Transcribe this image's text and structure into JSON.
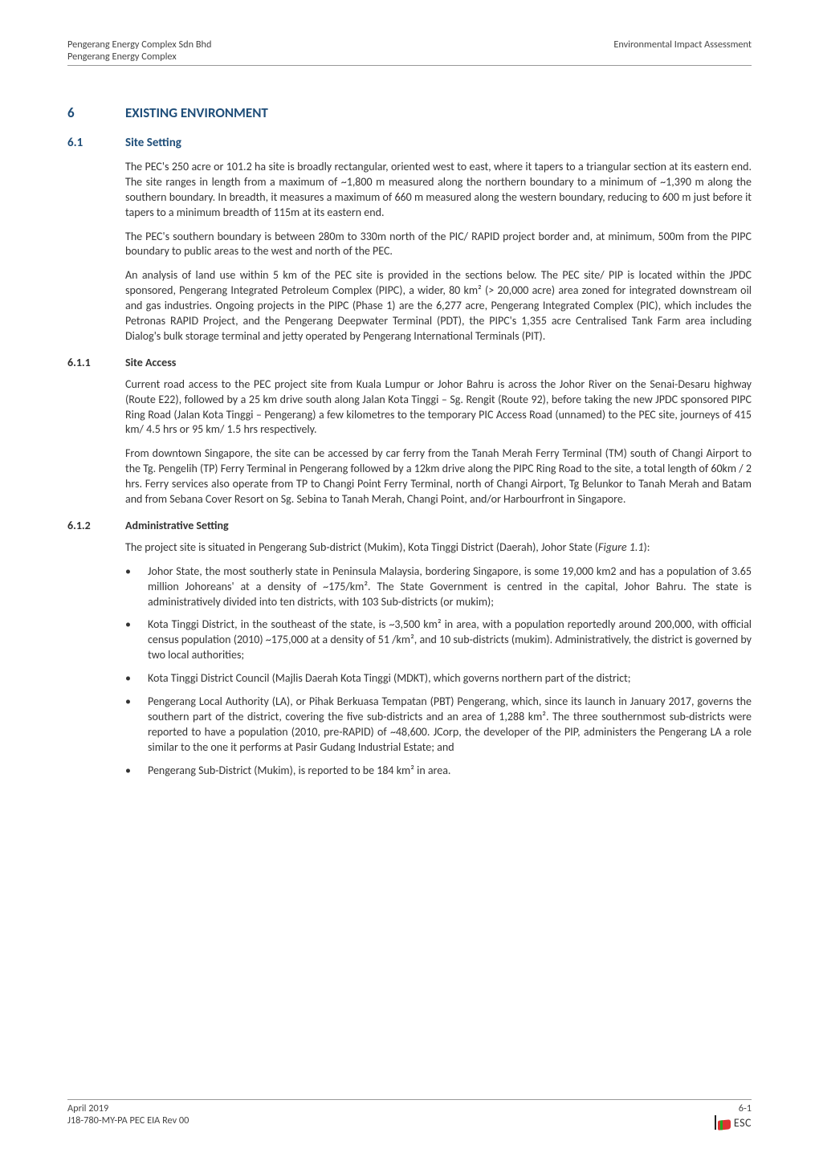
{
  "header": {
    "left_line1": "Pengerang Energy Complex Sdn Bhd",
    "left_line2": "Pengerang Energy Complex",
    "right_line1": "Environmental Impact Assessment"
  },
  "footer": {
    "left_line1": "April 2019",
    "left_line2": "J18-780-MY-PA PEC EIA Rev 00",
    "right_line1": "6-1",
    "logo_text": "ESC"
  },
  "sections": {
    "s6": {
      "num": "6",
      "title": "EXISTING ENVIRONMENT"
    },
    "s6_1": {
      "num": "6.1",
      "title": "Site Setting"
    },
    "s6_1_p1": "The PEC's 250 acre or 101.2 ha site is broadly rectangular, oriented west to east, where it tapers to a triangular section at its eastern end. The site ranges in length from a maximum of ~1,800 m measured along the northern boundary to a minimum of ~1,390 m along the southern boundary. In breadth, it measures a maximum of 660 m measured along the western boundary, reducing to 600 m just before it tapers to a minimum breadth of 115m at its eastern end.",
    "s6_1_p2": "The PEC's southern boundary is between 280m to 330m north of the PIC/ RAPID project border and, at minimum, 500m from the PIPC boundary to public areas to the west and north of the PEC.",
    "s6_1_p3": "An analysis of land use within 5 km of the PEC site is provided in the sections below.  The PEC site/ PIP is located within the JPDC sponsored, Pengerang Integrated Petroleum Complex (PIPC), a wider, 80 km² (> 20,000 acre) area zoned for integrated downstream oil and gas industries. Ongoing projects in the PIPC (Phase 1) are the 6,277 acre, Pengerang Integrated Complex (PIC), which includes the Petronas RAPID Project, and the Pengerang Deepwater Terminal (PDT), the PIPC's 1,355 acre Centralised Tank Farm area including Dialog's bulk storage terminal and jetty operated by Pengerang International Terminals (PIT).",
    "s6_1_1": {
      "num": "6.1.1",
      "title": "Site Access"
    },
    "s6_1_1_p1": "Current road access to the PEC project site from Kuala Lumpur or Johor Bahru is across the Johor River on the Senai-Desaru highway (Route E22), followed by a 25 km drive south along Jalan Kota Tinggi – Sg. Rengit (Route 92), before taking the new JPDC sponsored PIPC Ring Road (Jalan Kota Tinggi – Pengerang) a few kilometres to the temporary PIC Access Road (unnamed) to the PEC site, journeys of 415 km/ 4.5 hrs or 95 km/ 1.5 hrs respectively.",
    "s6_1_1_p2": "From downtown Singapore, the site can be accessed by car ferry from the Tanah Merah Ferry Terminal (TM) south of Changi Airport to the Tg. Pengelih (TP) Ferry Terminal in Pengerang followed by a 12km drive along the PIPC Ring Road to the site, a total length of 60km / 2 hrs.  Ferry services also operate from TP to Changi Point Ferry Terminal, north of Changi Airport, Tg Belunkor to Tanah Merah and Batam and from Sebana Cover Resort on Sg. Sebina to Tanah Merah, Changi Point, and/or Harbourfront in Singapore.",
    "s6_1_2": {
      "num": "6.1.2",
      "title": "Administrative Setting"
    },
    "s6_1_2_p1_a": "The project site is situated in Pengerang Sub-district (Mukim), Kota Tinggi District (Daerah), Johor State (",
    "s6_1_2_p1_fig": "Figure 1.1",
    "s6_1_2_p1_b": "):",
    "bullets": [
      "Johor State, the most southerly state in Peninsula Malaysia, bordering Singapore, is some 19,000 km2 and has a population of 3.65 million Johoreans' at a density of ~175/km².  The State Government is centred in the capital, Johor Bahru. The state is administratively divided into ten districts, with 103 Sub-districts (or mukim);",
      "Kota Tinggi District, in the southeast of the state, is ~3,500 km² in area, with a population reportedly around 200,000, with official census population (2010) ~175,000 at a density of 51 /km², and 10 sub-districts (mukim).  Administratively, the district is governed by two local authorities;",
      "Kota Tinggi District Council (Majlis Daerah Kota Tinggi (MDKT), which governs northern part of the district;",
      "Pengerang Local Authority (LA), or Pihak Berkuasa Tempatan (PBT) Pengerang, which, since its launch in January 2017, governs the southern part of the district, covering the five sub-districts and an area of 1,288 km². The three southernmost sub-districts were reported to have a population (2010, pre-RAPID) of ~48,600. JCorp, the developer of the PIP, administers the Pengerang LA a role similar to the one it performs at Pasir Gudang Industrial Estate; and",
      "Pengerang Sub-District (Mukim), is reported to be 184 km² in area."
    ]
  },
  "colors": {
    "heading_blue": "#1f4e79",
    "body_text": "#333333",
    "rule": "#999999",
    "background": "#ffffff"
  },
  "typography": {
    "body_pt": 11,
    "h1_pt": 13,
    "h2_pt": 12,
    "h3_pt": 11,
    "font_family": "Calibri"
  }
}
